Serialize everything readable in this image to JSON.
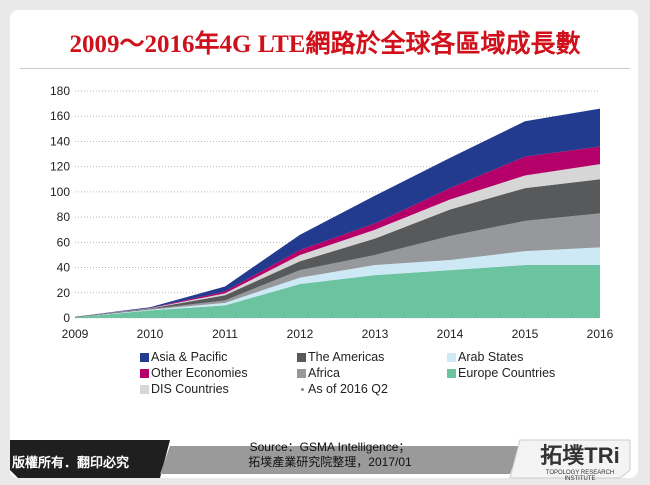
{
  "title": "2009～2016年4G LTE網路於全球各區域成長數",
  "chart_data": {
    "type": "area",
    "stacked": true,
    "title": "",
    "x": [
      "2009",
      "2010",
      "2011",
      "2012",
      "2013",
      "2014",
      "2015",
      "2016"
    ],
    "ylim": [
      0,
      180
    ],
    "yticks": [
      0,
      20,
      40,
      60,
      80,
      100,
      120,
      140,
      160,
      180
    ],
    "grid": true,
    "legend_position": "bottom",
    "series": [
      {
        "name": "Europe Countries",
        "color": "#6cc3a0",
        "values": [
          0.5,
          6,
          10,
          27,
          34,
          38,
          42,
          42
        ]
      },
      {
        "name": "Arab States",
        "color": "#cde9f6",
        "values": [
          0,
          0.5,
          2,
          5,
          8,
          8,
          11,
          14
        ]
      },
      {
        "name": "Africa",
        "color": "#96989c",
        "values": [
          0,
          0.5,
          2,
          6,
          8,
          19,
          24,
          27
        ]
      },
      {
        "name": "The Americas",
        "color": "#58595b",
        "values": [
          0.5,
          0.5,
          4,
          7,
          13,
          21,
          26,
          27
        ]
      },
      {
        "name": "DIS Countries",
        "color": "#d6d6d6",
        "values": [
          0,
          0.2,
          1.5,
          5,
          7,
          8,
          10,
          12
        ]
      },
      {
        "name": "Other Economies",
        "color": "#b5006a",
        "values": [
          0,
          0.2,
          1.5,
          4,
          5,
          9,
          15,
          14
        ]
      },
      {
        "name": "Asia & Pacific",
        "color": "#233b8f",
        "values": [
          0,
          0.6,
          4,
          12,
          22,
          24,
          28,
          30
        ]
      }
    ],
    "note": "As of  2016 Q2"
  },
  "legend": [
    {
      "label": "Asia & Pacific",
      "color": "#233b8f"
    },
    {
      "label": "The Americas",
      "color": "#58595b"
    },
    {
      "label": "Arab States",
      "color": "#cde9f6"
    },
    {
      "label": "Other Economies",
      "color": "#b5006a"
    },
    {
      "label": "Africa",
      "color": "#96989c"
    },
    {
      "label": "Europe Countries",
      "color": "#6cc3a0"
    },
    {
      "label": "DIS Countries",
      "color": "#d6d6d6"
    },
    {
      "label": "As of  2016 Q2",
      "color": "#888"
    }
  ],
  "footer": {
    "copyright": "版權所有．翻印必究",
    "source1": "Source：GSMA Intelligence；",
    "source2": "拓墣產業研究院整理，2017/01",
    "logo": "拓墣TRi",
    "logo_sub": "TOPOLOGY RESEARCH INSTITUTE"
  }
}
